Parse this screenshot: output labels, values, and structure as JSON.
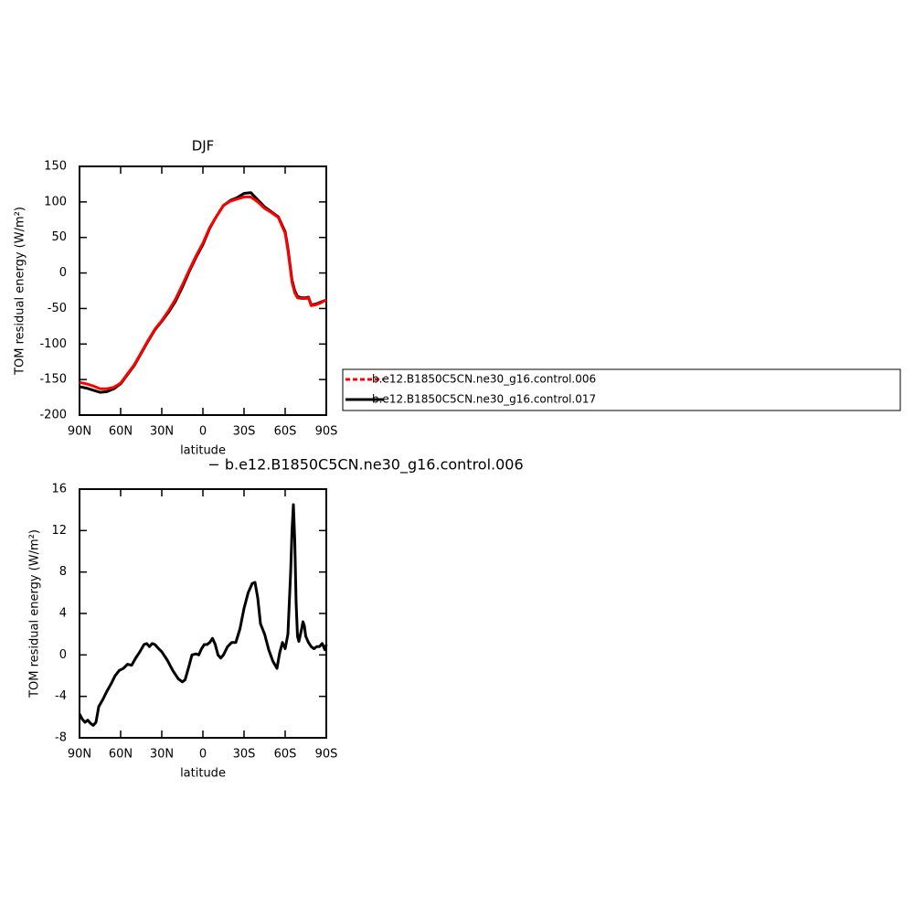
{
  "chart_data": [
    {
      "type": "line",
      "title": "DJF",
      "xlabel": "latitude",
      "ylabel": "TOM residual energy (W/m²)",
      "x": [
        90,
        85,
        80,
        75,
        70,
        65,
        60,
        55,
        50,
        45,
        40,
        35,
        30,
        25,
        20,
        15,
        10,
        5,
        0,
        -5,
        -10,
        -15,
        -20,
        -25,
        -30,
        -35,
        -40,
        -45,
        -50,
        -55,
        -60,
        -62,
        -65,
        -67,
        -69,
        -72,
        -75,
        -77,
        -79,
        -82,
        -86,
        -90
      ],
      "series": [
        {
          "name": "b.e12.B1850C5CN.ne30_g16.control.006",
          "color": "#ff0000",
          "values": [
            -154,
            -156,
            -159,
            -163,
            -163,
            -161,
            -155,
            -142,
            -129,
            -112,
            -95,
            -79,
            -67,
            -53,
            -37,
            -17,
            4,
            24,
            42,
            64,
            80,
            95,
            101,
            104,
            107,
            107,
            100,
            91,
            85,
            78,
            56,
            32,
            -13,
            -28,
            -35,
            -36,
            -36,
            -35,
            -46,
            -45,
            -42,
            -38
          ]
        },
        {
          "name": "b.e12.B1850C5CN.ne30_g16.control.017",
          "color": "#000000",
          "values": [
            -160,
            -162,
            -165,
            -168,
            -167,
            -163,
            -156,
            -143,
            -130,
            -113,
            -96,
            -80,
            -68,
            -55,
            -40,
            -20,
            2,
            22,
            40,
            63,
            80,
            95,
            102,
            106,
            112,
            113,
            103,
            93,
            86,
            79,
            58,
            35,
            -10,
            -25,
            -33,
            -35,
            -35,
            -34,
            -45,
            -44,
            -41,
            -38
          ]
        }
      ],
      "xlim": [
        90,
        -90
      ],
      "xticks": [
        {
          "value": 90,
          "label": "90N"
        },
        {
          "value": 60,
          "label": "60N"
        },
        {
          "value": 30,
          "label": "30N"
        },
        0,
        {
          "value": -30,
          "label": "30S"
        },
        {
          "value": -60,
          "label": "60S"
        },
        {
          "value": -90,
          "label": "90S"
        }
      ],
      "ylim": [
        -200,
        150
      ],
      "yticks": [
        -200,
        -150,
        -100,
        -50,
        0,
        50,
        100,
        150
      ],
      "legend": "right"
    },
    {
      "type": "line",
      "title": "− b.e12.B1850C5CN.ne30_g16.control.006",
      "xlabel": "latitude",
      "ylabel": "TOM residual energy (W/m²)",
      "x": [
        90,
        88,
        86,
        84,
        82,
        80,
        78,
        76,
        73,
        70,
        67,
        64,
        61,
        58,
        55,
        52,
        49,
        46,
        43,
        41,
        39,
        37,
        35,
        33,
        30,
        26,
        22,
        18,
        15,
        13,
        10,
        8,
        5,
        3,
        1,
        -1,
        -3,
        -5,
        -7,
        -9,
        -11,
        -13,
        -15,
        -18,
        -21,
        -24,
        -27,
        -30,
        -33,
        -36,
        -38,
        -40,
        -42,
        -45,
        -48,
        -51,
        -54,
        -56,
        -58,
        -60,
        -62,
        -64,
        -65,
        -66,
        -67,
        -68,
        -69,
        -70,
        -72,
        -73,
        -74,
        -75,
        -77,
        -79,
        -81,
        -83,
        -85,
        -87,
        -89,
        -90
      ],
      "series": [
        {
          "color": "#000000",
          "values": [
            -5.7,
            -6.2,
            -6.5,
            -6.3,
            -6.6,
            -6.8,
            -6.5,
            -5,
            -4.3,
            -3.5,
            -2.8,
            -2,
            -1.5,
            -1.3,
            -0.9,
            -1,
            -0.3,
            0.3,
            1,
            1.1,
            0.8,
            1.1,
            1,
            0.7,
            0.3,
            -0.5,
            -1.5,
            -2.3,
            -2.6,
            -2.4,
            -1,
            0,
            0.1,
            0,
            0.6,
            1,
            1,
            1.2,
            1.6,
            1,
            0,
            -0.3,
            0,
            0.8,
            1.2,
            1.2,
            2.5,
            4.5,
            6,
            6.9,
            7,
            5.5,
            3,
            2,
            0.5,
            -0.6,
            -1.3,
            0.2,
            1.2,
            0.6,
            2,
            8,
            12,
            14.5,
            11,
            5,
            1.8,
            1.3,
            2.5,
            3.2,
            2.8,
            1.8,
            1.2,
            0.8,
            0.6,
            0.8,
            0.8,
            1.1,
            0.5,
            1
          ]
        }
      ],
      "xlim": [
        90,
        -90
      ],
      "xticks": [
        {
          "value": 90,
          "label": "90N"
        },
        {
          "value": 60,
          "label": "60N"
        },
        {
          "value": 30,
          "label": "30N"
        },
        0,
        {
          "value": -30,
          "label": "30S"
        },
        {
          "value": -60,
          "label": "60S"
        },
        {
          "value": -90,
          "label": "90S"
        }
      ],
      "ylim": [
        -8,
        16
      ],
      "yticks": [
        -8,
        -4,
        0,
        4,
        8,
        12,
        16
      ]
    }
  ]
}
